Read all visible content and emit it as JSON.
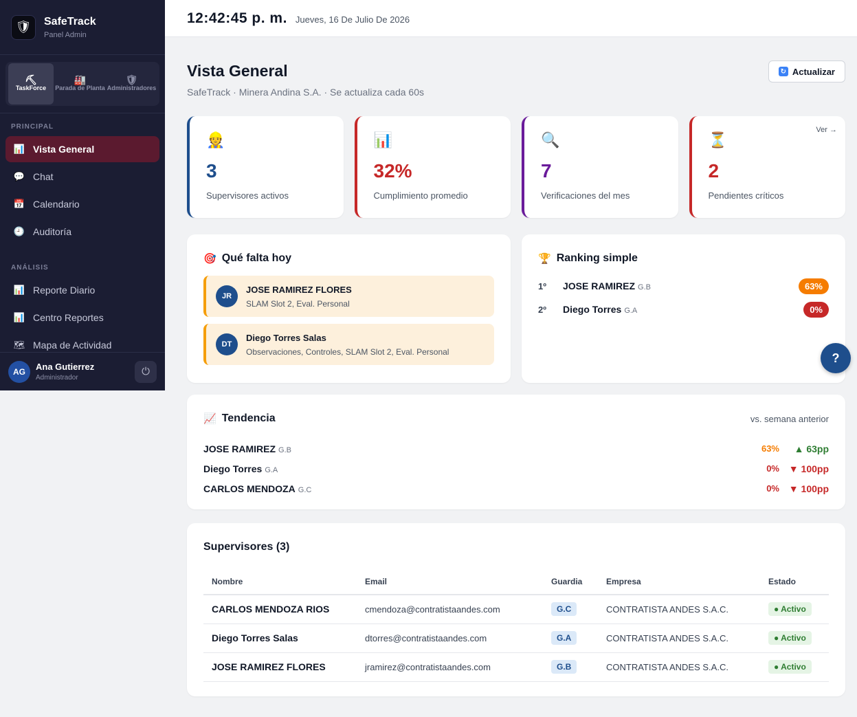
{
  "brand": {
    "name": "SafeTrack",
    "subtitle": "Panel Admin",
    "logo_icon": "shield-robot-icon",
    "logo_text": "SafeTrack"
  },
  "modules": [
    {
      "label": "TaskForce",
      "icon": "pickaxe-icon",
      "active": true
    },
    {
      "label": "Parada de Planta",
      "icon": "factory-icon",
      "active": false
    },
    {
      "label": "Administradores",
      "icon": "shield-icon",
      "active": false
    }
  ],
  "nav": {
    "principal_title": "PRINCIPAL",
    "principal": [
      {
        "label": "Vista General",
        "icon": "chart-icon",
        "active": true
      },
      {
        "label": "Chat",
        "icon": "chat-bubble-icon",
        "active": false
      },
      {
        "label": "Calendario",
        "icon": "calendar-icon",
        "active": false
      },
      {
        "label": "Auditoría",
        "icon": "clock-icon",
        "active": false
      }
    ],
    "analisis_title": "ANÁLISIS",
    "analisis": [
      {
        "label": "Reporte Diario",
        "icon": "chart-icon",
        "active": false
      },
      {
        "label": "Centro Reportes",
        "icon": "chart-icon",
        "active": false
      },
      {
        "label": "Mapa de Actividad",
        "icon": "map-icon",
        "active": false
      }
    ]
  },
  "user": {
    "initials": "AG",
    "name": "Ana Gutierrez",
    "role": "Administrador"
  },
  "topbar": {
    "time": "12:42:45 p. m.",
    "date": "Jueves, 16 De Julio De 2026"
  },
  "page": {
    "title": "Vista General",
    "subtitle": "SafeTrack · Minera Andina S.A. · Se actualiza cada 60s",
    "refresh_label": "Actualizar"
  },
  "kpis": [
    {
      "value": "3",
      "label": "Supervisores activos",
      "icon": "worker-icon",
      "color": "#1e4e8c",
      "link": ""
    },
    {
      "value": "32%",
      "label": "Cumplimiento promedio",
      "icon": "bar-chart-icon",
      "color": "#c62828",
      "link": ""
    },
    {
      "value": "7",
      "label": "Verificaciones del mes",
      "icon": "magnifier-icon",
      "color": "#6a1b9a",
      "link": ""
    },
    {
      "value": "2",
      "label": "Pendientes críticos",
      "icon": "hourglass-icon",
      "color": "#c62828",
      "link": "Ver →"
    }
  ],
  "falta": {
    "title": "Qué falta hoy",
    "items": [
      {
        "initials": "JR",
        "name": "JOSE RAMIREZ FLORES",
        "desc": "SLAM Slot 2, Eval. Personal"
      },
      {
        "initials": "DT",
        "name": "Diego Torres Salas",
        "desc": "Observaciones, Controles, SLAM Slot 2, Eval. Personal"
      }
    ]
  },
  "ranking": {
    "title": "Ranking simple",
    "items": [
      {
        "pos": "1º",
        "name": "JOSE RAMIREZ",
        "guard": "G.B",
        "pct": "63%",
        "color": "#f57c00"
      },
      {
        "pos": "2º",
        "name": "Diego Torres",
        "guard": "G.A",
        "pct": "0%",
        "color": "#c62828"
      }
    ]
  },
  "help_label": "?",
  "tendencia": {
    "title": "Tendencia",
    "note": "vs. semana anterior",
    "rows": [
      {
        "name": "JOSE RAMIREZ",
        "guard": "G.B",
        "pct": "63%",
        "pct_color": "#f57c00",
        "delta": "▲ 63pp",
        "delta_color": "#2e7d32"
      },
      {
        "name": "Diego Torres",
        "guard": "G.A",
        "pct": "0%",
        "pct_color": "#c62828",
        "delta": "▼ 100pp",
        "delta_color": "#c62828"
      },
      {
        "name": "CARLOS MENDOZA",
        "guard": "G.C",
        "pct": "0%",
        "pct_color": "#c62828",
        "delta": "▼ 100pp",
        "delta_color": "#c62828"
      }
    ]
  },
  "supervisores": {
    "title": "Supervisores (3)",
    "columns": [
      "Nombre",
      "Email",
      "Guardia",
      "Empresa",
      "Estado"
    ],
    "rows": [
      {
        "name": "CARLOS MENDOZA RIOS",
        "email": "cmendoza@contratistaandes.com",
        "guard": "G.C",
        "company": "CONTRATISTA ANDES S.A.C.",
        "status": "● Activo"
      },
      {
        "name": "Diego Torres Salas",
        "email": "dtorres@contratistaandes.com",
        "guard": "G.A",
        "company": "CONTRATISTA ANDES S.A.C.",
        "status": "● Activo"
      },
      {
        "name": "JOSE RAMIREZ FLORES",
        "email": "jramirez@contratistaandes.com",
        "guard": "G.B",
        "company": "CONTRATISTA ANDES S.A.C.",
        "status": "● Activo"
      }
    ]
  }
}
